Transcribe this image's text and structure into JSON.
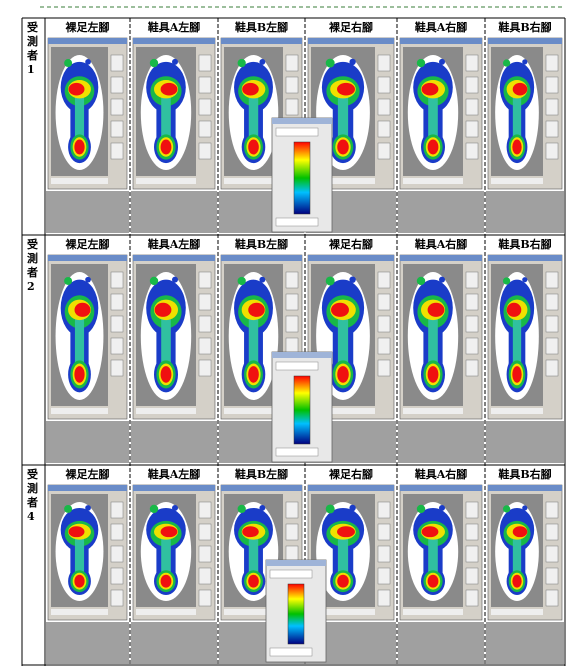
{
  "rows": [
    {
      "label": "受測者1",
      "headers": [
        "裸足左腳",
        "鞋具A左腳",
        "鞋具B左腳",
        "裸足右腳",
        "鞋具A右腳",
        "鞋具B右腳"
      ]
    },
    {
      "label": "受測者2",
      "headers": [
        "裸足左腳",
        "鞋具A左腳",
        "鞋具B左腳",
        "裸足右腳",
        "鞋具A右腳",
        "鞋具B右腳"
      ]
    },
    {
      "label": "受測者4",
      "headers": [
        "裸足左腳",
        "鞋具A左腳",
        "鞋具B左腳",
        "裸足右腳",
        "鞋具A右腳",
        "鞋具B右腳"
      ]
    }
  ]
}
